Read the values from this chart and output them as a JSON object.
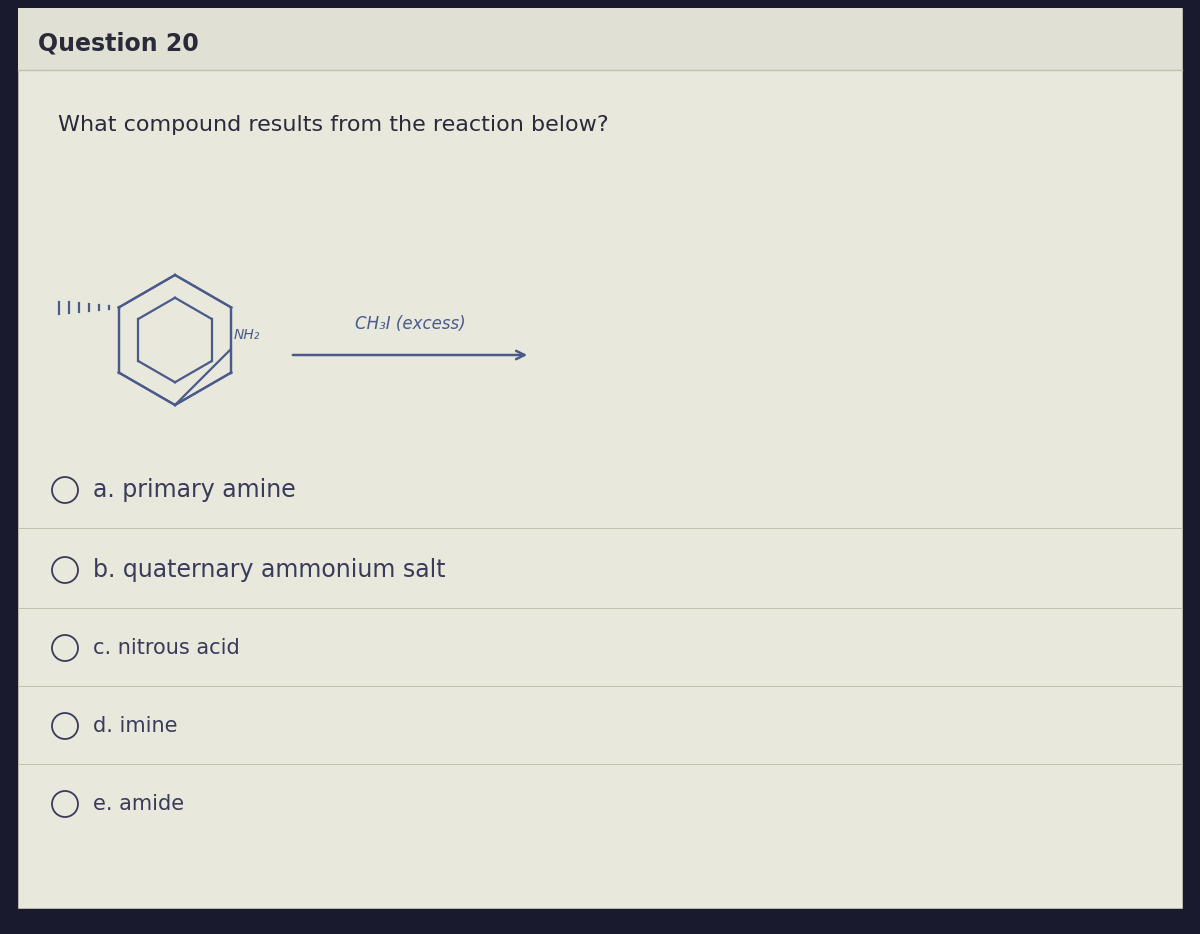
{
  "title": "Question 20",
  "question": "What compound results from the reaction below?",
  "options": [
    "a. primary amine",
    "b. quaternary ammonium salt",
    "c. nitrous acid",
    "d. imine",
    "e. amide"
  ],
  "reagent_label": "CH₃I (excess)",
  "outer_bg": "#1a1a2e",
  "card_bg": "#e8e8dc",
  "title_bg": "#e0e0d4",
  "title_color": "#2a2a3a",
  "question_color": "#2a2a3a",
  "option_color": "#3a3a5a",
  "structure_color": "#4a5a8a",
  "arrow_color": "#4a5a8a",
  "separator_color": "#c0c0b0"
}
